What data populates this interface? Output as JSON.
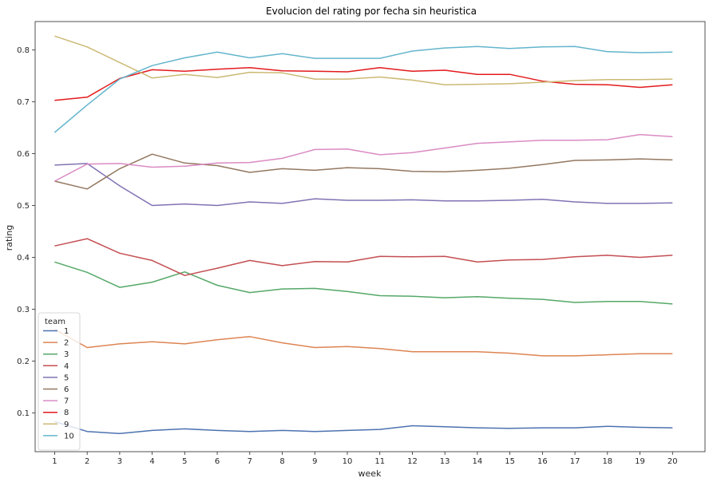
{
  "chart_data": {
    "type": "line",
    "title": "Evolucion del rating por fecha sin heuristica",
    "xlabel": "week",
    "ylabel": "rating",
    "x": [
      1,
      2,
      3,
      4,
      5,
      6,
      7,
      8,
      9,
      10,
      11,
      12,
      13,
      14,
      15,
      16,
      17,
      18,
      19,
      20
    ],
    "xlim": [
      0.4,
      21.0
    ],
    "ylim": [
      0.025,
      0.855
    ],
    "yticks": [
      "0.1",
      "0.2",
      "0.3",
      "0.4",
      "0.5",
      "0.6",
      "0.7",
      "0.8"
    ],
    "grid": false,
    "legend": {
      "title": "team",
      "placement": "lower-left"
    },
    "series": [
      {
        "name": "1",
        "color": "#4c72b0",
        "values": [
          0.083,
          0.064,
          0.06,
          0.066,
          0.069,
          0.066,
          0.064,
          0.066,
          0.064,
          0.066,
          0.068,
          0.075,
          0.073,
          0.071,
          0.07,
          0.071,
          0.071,
          0.074,
          0.072,
          0.071
        ]
      },
      {
        "name": "2",
        "color": "#dd8452",
        "values": [
          0.261,
          0.226,
          0.233,
          0.237,
          0.233,
          0.241,
          0.247,
          0.235,
          0.226,
          0.228,
          0.224,
          0.218,
          0.218,
          0.218,
          0.215,
          0.21,
          0.21,
          0.212,
          0.214,
          0.214
        ]
      },
      {
        "name": "3",
        "color": "#55a868",
        "values": [
          0.391,
          0.371,
          0.342,
          0.352,
          0.372,
          0.346,
          0.332,
          0.339,
          0.34,
          0.334,
          0.326,
          0.325,
          0.322,
          0.324,
          0.321,
          0.319,
          0.313,
          0.315,
          0.315,
          0.31
        ]
      },
      {
        "name": "4",
        "color": "#c44e52",
        "values": [
          0.422,
          0.436,
          0.408,
          0.394,
          0.365,
          0.379,
          0.394,
          0.384,
          0.392,
          0.391,
          0.402,
          0.401,
          0.402,
          0.391,
          0.395,
          0.396,
          0.401,
          0.404,
          0.4,
          0.404
        ]
      },
      {
        "name": "5",
        "color": "#8172b3",
        "values": [
          0.578,
          0.581,
          0.538,
          0.5,
          0.503,
          0.5,
          0.507,
          0.504,
          0.513,
          0.51,
          0.51,
          0.511,
          0.509,
          0.509,
          0.51,
          0.512,
          0.507,
          0.504,
          0.504,
          0.505
        ]
      },
      {
        "name": "6",
        "color": "#937860",
        "values": [
          0.547,
          0.532,
          0.571,
          0.599,
          0.582,
          0.577,
          0.564,
          0.571,
          0.568,
          0.573,
          0.571,
          0.566,
          0.565,
          0.568,
          0.572,
          0.579,
          0.587,
          0.588,
          0.59,
          0.588
        ]
      },
      {
        "name": "7",
        "color": "#da8bc3",
        "values": [
          0.547,
          0.58,
          0.581,
          0.574,
          0.576,
          0.582,
          0.583,
          0.591,
          0.608,
          0.609,
          0.598,
          0.602,
          0.611,
          0.62,
          0.623,
          0.626,
          0.626,
          0.627,
          0.637,
          0.633
        ]
      },
      {
        "name": "8",
        "color": "#e31a1c",
        "values": [
          0.703,
          0.709,
          0.745,
          0.762,
          0.759,
          0.763,
          0.766,
          0.76,
          0.759,
          0.758,
          0.766,
          0.759,
          0.761,
          0.753,
          0.753,
          0.74,
          0.734,
          0.733,
          0.728,
          0.733
        ]
      },
      {
        "name": "9",
        "color": "#ccb974",
        "values": [
          0.827,
          0.806,
          0.776,
          0.746,
          0.753,
          0.747,
          0.757,
          0.756,
          0.744,
          0.744,
          0.748,
          0.742,
          0.733,
          0.734,
          0.735,
          0.738,
          0.741,
          0.743,
          0.743,
          0.744
        ]
      },
      {
        "name": "10",
        "color": "#64b5cd",
        "values": [
          0.641,
          0.694,
          0.744,
          0.77,
          0.785,
          0.796,
          0.785,
          0.793,
          0.784,
          0.784,
          0.784,
          0.798,
          0.804,
          0.807,
          0.803,
          0.806,
          0.807,
          0.797,
          0.795,
          0.796
        ]
      }
    ]
  }
}
